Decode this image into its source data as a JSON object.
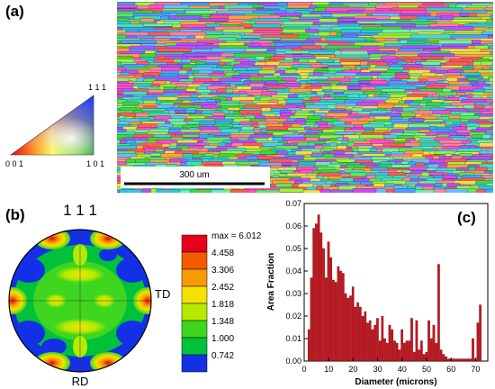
{
  "panels": {
    "a": "(a)",
    "b": "(b)",
    "c": "(c)"
  },
  "ebsd_map": {
    "scale_bar_label": "300 um"
  },
  "ipf_key": {
    "top": "1 1 1",
    "left": "0 0 1",
    "right": "1 0 1"
  },
  "pole_figure": {
    "title": "1 1 1",
    "td_label": "TD",
    "rd_label": "RD",
    "legend": [
      "max = 6.012",
      "4.458",
      "3.306",
      "2.452",
      "1.818",
      "1.348",
      "1.000",
      "0.742"
    ],
    "legend_colors": [
      "#e8001a",
      "#f55a00",
      "#f99a00",
      "#f5e100",
      "#b7ea00",
      "#3fd61f",
      "#00c23a",
      "#1430e6"
    ]
  },
  "chart_data": {
    "type": "bar",
    "xlabel": "Diameter (microns)",
    "ylabel": "Area Fraction",
    "xlim": [
      0,
      75
    ],
    "ylim": [
      0,
      0.07
    ],
    "xticks": [
      "0",
      "10",
      "20",
      "30",
      "40",
      "50",
      "60",
      "70"
    ],
    "yticks": [
      "0.00",
      "0.01",
      "0.02",
      "0.03",
      "0.04",
      "0.05",
      "0.06",
      "0.07"
    ],
    "bar_color": "#c8141e",
    "bin_width": 1,
    "x": [
      2,
      3,
      4,
      5,
      6,
      7,
      8,
      9,
      10,
      11,
      12,
      13,
      14,
      15,
      16,
      17,
      18,
      19,
      20,
      21,
      22,
      23,
      24,
      25,
      26,
      27,
      28,
      29,
      30,
      31,
      32,
      33,
      34,
      35,
      36,
      37,
      38,
      39,
      40,
      41,
      42,
      43,
      44,
      45,
      46,
      47,
      48,
      49,
      50,
      51,
      52,
      53,
      54,
      55,
      56,
      57,
      58,
      59,
      60,
      61,
      62,
      63,
      64,
      65,
      66,
      67,
      68,
      69,
      70,
      71,
      72
    ],
    "values": [
      0.014,
      0.037,
      0.059,
      0.061,
      0.065,
      0.057,
      0.05,
      0.037,
      0.053,
      0.046,
      0.036,
      0.035,
      0.042,
      0.04,
      0.039,
      0.03,
      0.028,
      0.029,
      0.033,
      0.024,
      0.026,
      0.024,
      0.02,
      0.022,
      0.017,
      0.018,
      0.014,
      0.016,
      0.019,
      0.009,
      0.02,
      0.01,
      0.008,
      0.016,
      0.014,
      0.009,
      0.008,
      0.005,
      0.014,
      0.008,
      0.009,
      0.009,
      0.019,
      0.004,
      0.018,
      0.005,
      0.009,
      0.003,
      0.004,
      0.018,
      0.01,
      0.016,
      0.008,
      0.043,
      0.005,
      0.003,
      0.002,
      0.001,
      0.001,
      0.001,
      0.001,
      0.001,
      0.001,
      0.001,
      0.001,
      0.001,
      0.001,
      0.01,
      0.001,
      0.017,
      0.025
    ]
  }
}
